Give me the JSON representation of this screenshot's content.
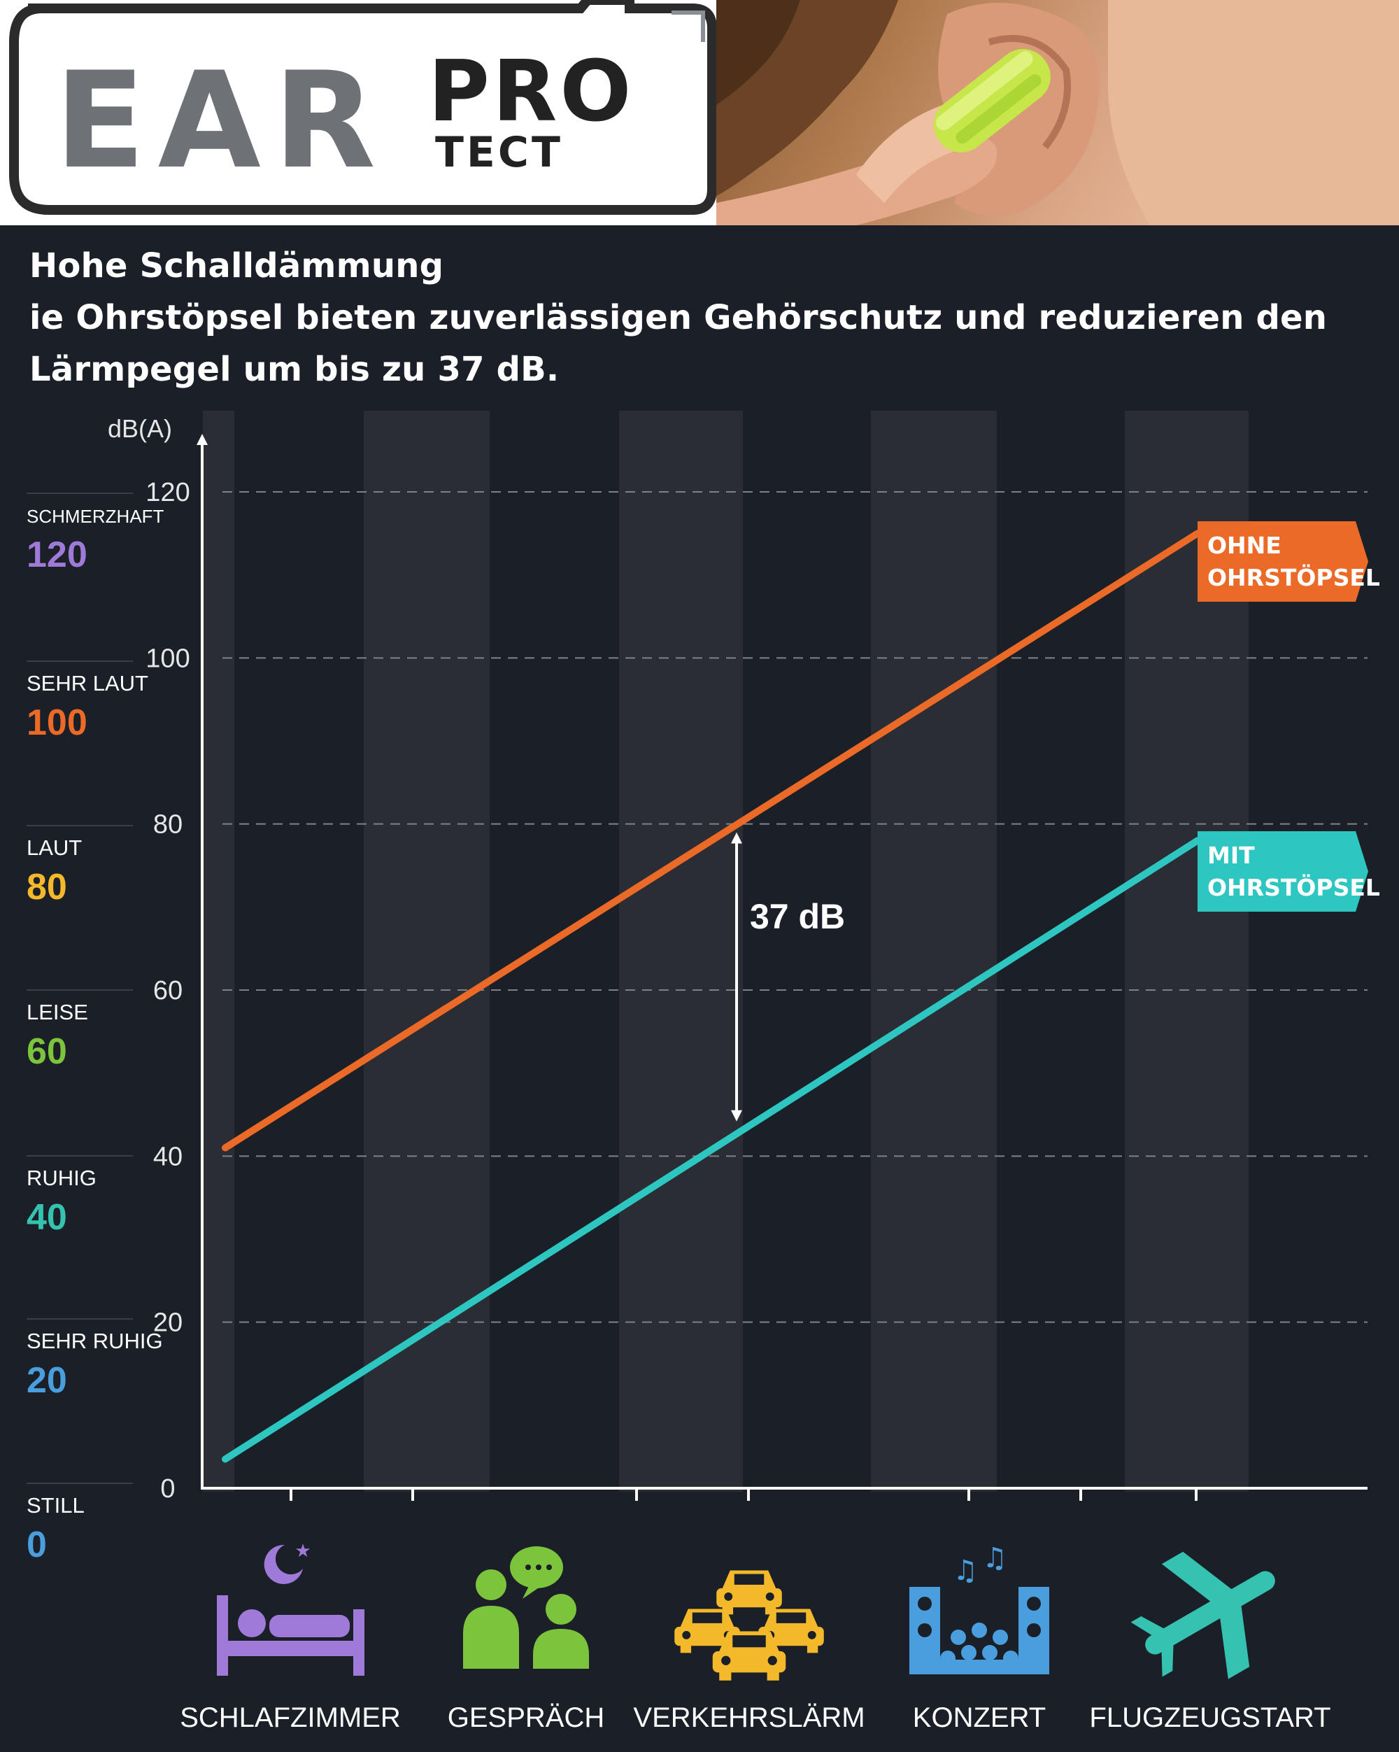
{
  "brand": {
    "logo_main": "EAR",
    "logo_sup": "PRO",
    "logo_sub": "TECT"
  },
  "intro": {
    "heading": "Hohe Schalldämmung",
    "line1": "ie Ohrstöpsel bieten zuverlässigen Gehörschutz und reduzieren den",
    "line2": "Lärmpegel um bis zu 37 dB."
  },
  "colors": {
    "ohne": "#ec6a27",
    "mit": "#2ec6c0",
    "background": "#1b2028",
    "stripe": "#2a2e34",
    "schmerzhaft": "#a07ad8",
    "sehr_laut": "#ec6a27",
    "laut": "#f4b92a",
    "leise": "#7cc43c",
    "ruhig": "#35c2b0",
    "sehr_ruhig": "#4a9ede",
    "still": "#4a9ede"
  },
  "chart_data": {
    "type": "line",
    "ylabel": "dB(A)",
    "ylim": [
      0,
      120
    ],
    "yticks": [
      0,
      20,
      40,
      60,
      80,
      100,
      120
    ],
    "grid": true,
    "categories": [
      "SCHLAFZIMMER",
      "GESPRÄCH",
      "VERKEHRSLÄRM",
      "KONZERT",
      "FLUGZEUGSTART"
    ],
    "series": [
      {
        "name": "OHNE OHRSTÖPSEL",
        "label_line1": "OHNE",
        "label_line2": "OHRSTÖPSEL",
        "start": 41,
        "end": 115,
        "color": "#ec6a27"
      },
      {
        "name": "MIT OHRSTÖPSEL",
        "label_line1": "MIT",
        "label_line2": "OHRSTÖPSEL",
        "start": 3.5,
        "end": 78,
        "color": "#2ec6c0"
      }
    ],
    "annotation": {
      "text": "37 dB",
      "top": 80,
      "bottom": 43
    }
  },
  "scale": [
    {
      "label": "SCHMERZHAFT",
      "value": "120",
      "color": "#a07ad8"
    },
    {
      "label": "SEHR LAUT",
      "value": "100",
      "color": "#ec6a27"
    },
    {
      "label": "LAUT",
      "value": "80",
      "color": "#f4b92a"
    },
    {
      "label": "LEISE",
      "value": "60",
      "color": "#7cc43c"
    },
    {
      "label": "RUHIG",
      "value": "40",
      "color": "#35c2b0"
    },
    {
      "label": "SEHR RUHIG",
      "value": "20",
      "color": "#4a9ede"
    },
    {
      "label": "STILL",
      "value": "0",
      "color": "#4a9ede"
    }
  ],
  "icons": [
    {
      "name": "bed-icon",
      "label": "SCHLAFZIMMER"
    },
    {
      "name": "conversation-icon",
      "label": "GESPRÄCH"
    },
    {
      "name": "traffic-icon",
      "label": "VERKEHRSLÄRM"
    },
    {
      "name": "concert-icon",
      "label": "KONZERT"
    },
    {
      "name": "airplane-icon",
      "label": "FLUGZEUGSTART"
    }
  ]
}
